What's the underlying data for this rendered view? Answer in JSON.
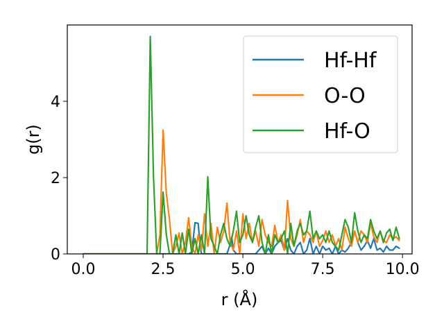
{
  "chart_data": {
    "type": "line",
    "xlabel": "r (Å)",
    "ylabel": "g(r)",
    "xlim": [
      -0.5,
      10.3
    ],
    "ylim": [
      0,
      6.0
    ],
    "xticks": [
      0.0,
      2.5,
      5.0,
      7.5,
      10.0
    ],
    "xtick_labels": [
      "0.0",
      "2.5",
      "5.0",
      "7.5",
      "10.0"
    ],
    "yticks": [
      0,
      2,
      4
    ],
    "ytick_labels": [
      "0",
      "2",
      "4"
    ],
    "grid": false,
    "legend_position": "top-right",
    "colors": {
      "Hf-Hf": "#1f77b4",
      "O-O": "#ff7f0e",
      "Hf-O": "#2ca02c"
    },
    "series": [
      {
        "name": "Hf-Hf",
        "x": [
          0.0,
          3.3,
          3.4,
          3.5,
          3.6,
          3.65,
          3.7,
          3.8,
          3.9,
          4.5,
          4.6,
          4.65,
          4.7,
          4.8,
          5.4,
          5.5,
          5.6,
          5.7,
          5.8,
          5.9,
          6.0,
          6.1,
          6.2,
          6.3,
          6.4,
          6.5,
          6.6,
          6.7,
          6.8,
          6.9,
          7.0,
          7.1,
          7.2,
          7.3,
          7.4,
          7.5,
          7.6,
          7.7,
          7.8,
          7.9,
          8.0,
          8.1,
          8.2,
          8.3,
          8.4,
          8.5,
          8.6,
          8.7,
          8.8,
          8.9,
          9.0,
          9.1,
          9.2,
          9.3,
          9.4,
          9.5,
          9.6,
          9.7,
          9.8,
          9.9
        ],
        "y": [
          0,
          0,
          0.05,
          0.82,
          0.8,
          0.3,
          0.0,
          0.0,
          0.0,
          0.0,
          0.25,
          0.45,
          0.1,
          0.0,
          0.0,
          0.1,
          0.2,
          0.0,
          0.15,
          0.0,
          0.2,
          0.3,
          0.35,
          0.1,
          0.4,
          0.1,
          0.0,
          0.2,
          0.3,
          0.0,
          0.1,
          0.4,
          0.0,
          0.2,
          0.0,
          0.2,
          0.1,
          0.15,
          0.0,
          0.2,
          0.0,
          0.1,
          0.05,
          0.15,
          0.3,
          0.6,
          0.3,
          0.1,
          0.2,
          0.35,
          0.15,
          0.4,
          0.1,
          0.15,
          0.05,
          0.2,
          0.1,
          0.1,
          0.2,
          0.15
        ]
      },
      {
        "name": "O-O",
        "x": [
          0.0,
          2.3,
          2.4,
          2.5,
          2.6,
          2.7,
          2.8,
          2.9,
          3.0,
          3.1,
          3.2,
          3.3,
          3.4,
          3.5,
          3.6,
          3.7,
          3.8,
          3.9,
          4.0,
          4.1,
          4.2,
          4.3,
          4.4,
          4.5,
          4.6,
          4.7,
          4.8,
          4.9,
          5.0,
          5.1,
          5.2,
          5.3,
          5.4,
          5.5,
          5.6,
          5.7,
          5.8,
          5.9,
          6.0,
          6.1,
          6.2,
          6.3,
          6.4,
          6.5,
          6.6,
          6.7,
          6.8,
          6.9,
          7.0,
          7.1,
          7.2,
          7.3,
          7.4,
          7.5,
          7.6,
          7.7,
          7.8,
          7.9,
          8.0,
          8.1,
          8.2,
          8.3,
          8.4,
          8.5,
          8.6,
          8.7,
          8.8,
          8.9,
          9.0,
          9.1,
          9.2,
          9.3,
          9.4,
          9.5,
          9.6,
          9.7,
          9.8,
          9.9
        ],
        "y": [
          0,
          0,
          0.5,
          3.25,
          1.6,
          0.9,
          0.0,
          0.2,
          0.55,
          0.0,
          0.3,
          0.95,
          0.2,
          0.0,
          0.5,
          0.1,
          1.05,
          0.2,
          0.8,
          0.0,
          0.7,
          0.3,
          0.6,
          1.33,
          0.3,
          0.1,
          0.6,
          0.0,
          1.05,
          0.4,
          0.8,
          0.3,
          0.6,
          0.2,
          0.9,
          0.5,
          0.3,
          0.2,
          0.75,
          0.3,
          0.5,
          0.1,
          1.4,
          0.4,
          0.2,
          0.5,
          0.9,
          0.3,
          0.6,
          0.5,
          0.3,
          0.6,
          0.2,
          0.35,
          0.6,
          0.3,
          0.5,
          0.2,
          0.4,
          0.1,
          0.7,
          0.4,
          0.2,
          0.6,
          0.3,
          0.6,
          0.5,
          0.3,
          0.8,
          0.45,
          0.3,
          0.6,
          0.35,
          0.3,
          0.5,
          0.4,
          0.45,
          0.35
        ]
      },
      {
        "name": "Hf-O",
        "x": [
          0.0,
          2.0,
          2.1,
          2.2,
          2.3,
          2.4,
          2.5,
          2.6,
          2.7,
          2.8,
          2.9,
          3.0,
          3.1,
          3.2,
          3.3,
          3.4,
          3.5,
          3.6,
          3.7,
          3.8,
          3.9,
          4.0,
          4.1,
          4.2,
          4.3,
          4.4,
          4.5,
          4.6,
          4.7,
          4.8,
          4.9,
          5.0,
          5.1,
          5.2,
          5.3,
          5.4,
          5.5,
          5.6,
          5.7,
          5.8,
          5.9,
          6.0,
          6.1,
          6.2,
          6.3,
          6.4,
          6.5,
          6.6,
          6.7,
          6.8,
          6.9,
          7.0,
          7.1,
          7.2,
          7.3,
          7.4,
          7.5,
          7.6,
          7.7,
          7.8,
          7.9,
          8.0,
          8.1,
          8.2,
          8.3,
          8.4,
          8.5,
          8.6,
          8.7,
          8.8,
          8.9,
          9.0,
          9.1,
          9.2,
          9.3,
          9.4,
          9.5,
          9.6,
          9.7,
          9.8,
          9.9
        ],
        "y": [
          0,
          0,
          5.7,
          2.0,
          0.0,
          0.0,
          1.62,
          0.5,
          0.0,
          0.0,
          0.5,
          0.0,
          0.55,
          0.0,
          0.65,
          0.0,
          0.4,
          0.0,
          0.5,
          0.0,
          2.02,
          0.4,
          0.2,
          0.0,
          0.5,
          0.8,
          0.4,
          0.2,
          0.6,
          1.12,
          0.3,
          0.5,
          1.0,
          0.5,
          0.3,
          0.7,
          1.0,
          0.3,
          0.0,
          0.5,
          0.0,
          0.5,
          0.3,
          0.4,
          0.6,
          0.0,
          0.8,
          0.2,
          0.6,
          0.8,
          0.5,
          0.6,
          1.12,
          0.4,
          0.6,
          0.4,
          0.5,
          0.3,
          0.6,
          0.3,
          0.2,
          0.1,
          0.5,
          0.9,
          0.7,
          0.3,
          1.08,
          0.6,
          0.3,
          0.5,
          0.4,
          0.9,
          0.6,
          0.4,
          0.6,
          0.3,
          0.55,
          0.65,
          0.35,
          0.7,
          0.4
        ]
      }
    ]
  }
}
